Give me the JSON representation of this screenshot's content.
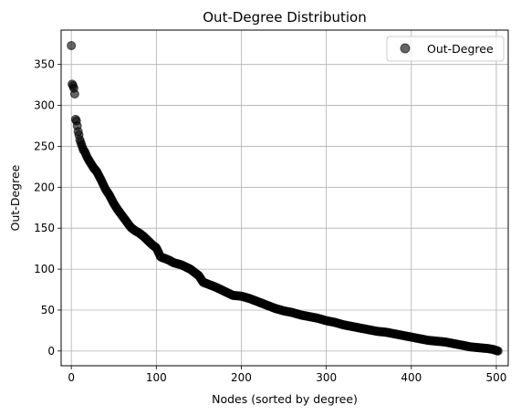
{
  "chart_data": {
    "type": "scatter",
    "title": "Out-Degree Distribution",
    "xlabel": "Nodes (sorted by degree)",
    "ylabel": "Out-Degree",
    "xlim": [
      -12,
      514
    ],
    "ylim": [
      -18,
      392
    ],
    "x_ticks": [
      0,
      100,
      200,
      300,
      400,
      500
    ],
    "y_ticks": [
      0,
      50,
      100,
      150,
      200,
      250,
      300,
      350
    ],
    "grid": true,
    "legend_position": "top-right",
    "series": [
      {
        "name": "Out-Degree",
        "color": "#000000",
        "opacity": 0.6,
        "n_points": 503,
        "profile": [
          [
            0,
            373
          ],
          [
            1,
            326
          ],
          [
            2,
            324
          ],
          [
            3,
            321
          ],
          [
            4,
            314
          ],
          [
            5,
            283
          ],
          [
            6,
            281
          ],
          [
            7,
            275
          ],
          [
            8,
            268
          ],
          [
            9,
            264
          ],
          [
            10,
            258
          ],
          [
            12,
            252
          ],
          [
            14,
            246
          ],
          [
            16,
            243
          ],
          [
            18,
            238
          ],
          [
            20,
            234
          ],
          [
            23,
            229
          ],
          [
            26,
            224
          ],
          [
            30,
            219
          ],
          [
            35,
            209
          ],
          [
            40,
            198
          ],
          [
            45,
            190
          ],
          [
            50,
            180
          ],
          [
            55,
            172
          ],
          [
            60,
            165
          ],
          [
            65,
            158
          ],
          [
            70,
            151
          ],
          [
            75,
            147
          ],
          [
            80,
            144
          ],
          [
            85,
            140
          ],
          [
            90,
            135
          ],
          [
            95,
            130
          ],
          [
            100,
            126
          ],
          [
            105,
            115
          ],
          [
            110,
            113
          ],
          [
            115,
            111
          ],
          [
            120,
            108
          ],
          [
            130,
            105
          ],
          [
            140,
            100
          ],
          [
            150,
            92
          ],
          [
            155,
            84
          ],
          [
            160,
            82
          ],
          [
            170,
            78
          ],
          [
            180,
            73
          ],
          [
            190,
            68
          ],
          [
            200,
            67
          ],
          [
            210,
            64
          ],
          [
            220,
            60
          ],
          [
            230,
            56
          ],
          [
            240,
            52
          ],
          [
            250,
            49
          ],
          [
            260,
            47
          ],
          [
            270,
            44
          ],
          [
            280,
            42
          ],
          [
            290,
            40
          ],
          [
            300,
            37
          ],
          [
            310,
            35
          ],
          [
            320,
            32
          ],
          [
            330,
            30
          ],
          [
            340,
            28
          ],
          [
            350,
            26
          ],
          [
            360,
            24
          ],
          [
            370,
            23
          ],
          [
            380,
            21
          ],
          [
            390,
            19
          ],
          [
            400,
            17
          ],
          [
            410,
            15
          ],
          [
            420,
            13
          ],
          [
            430,
            12
          ],
          [
            440,
            11
          ],
          [
            450,
            9
          ],
          [
            460,
            7
          ],
          [
            470,
            5
          ],
          [
            480,
            4
          ],
          [
            490,
            3
          ],
          [
            496,
            2
          ],
          [
            502,
            0
          ]
        ]
      }
    ]
  }
}
